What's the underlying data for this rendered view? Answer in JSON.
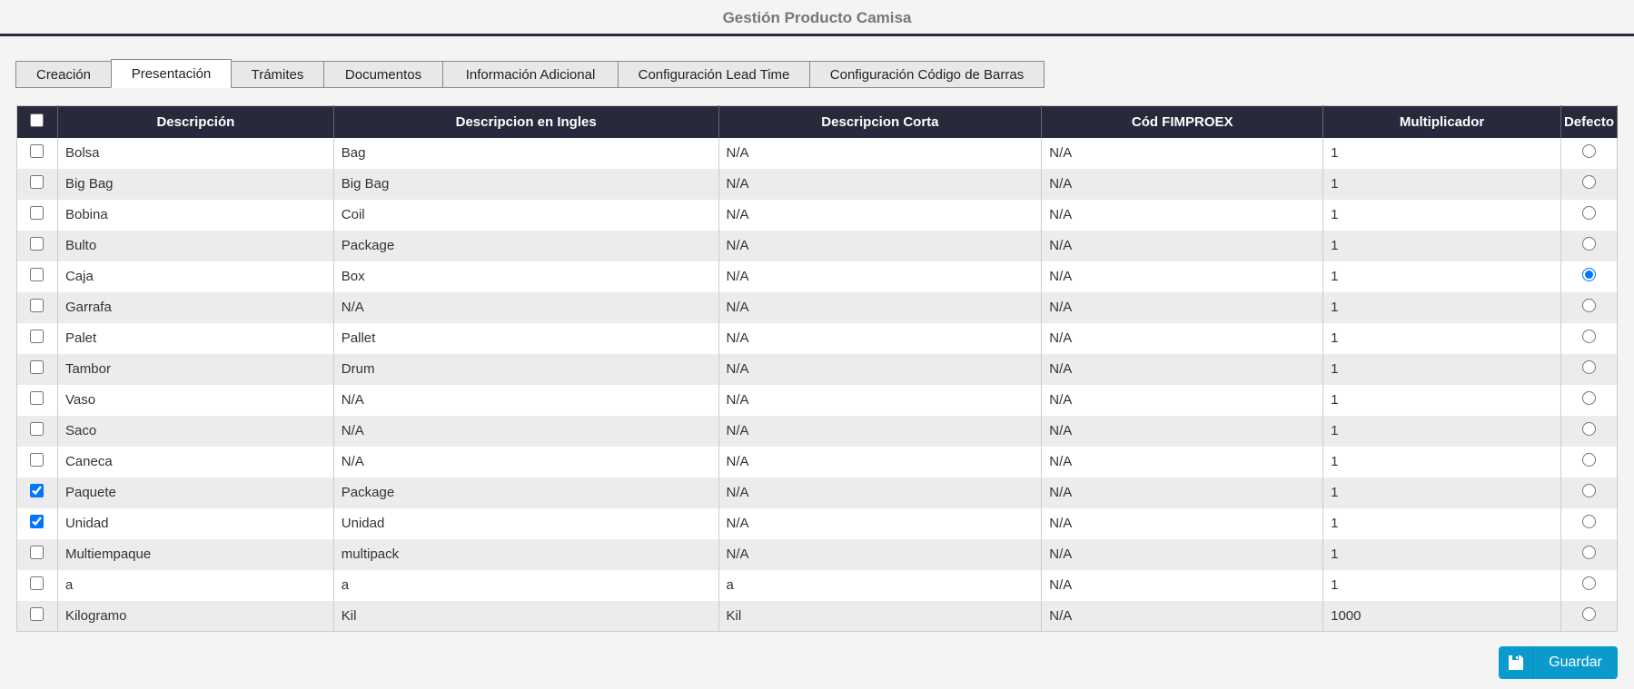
{
  "title": "Gestión Producto Camisa",
  "tabs": [
    {
      "label": "Creación",
      "w": 106
    },
    {
      "label": "Presentación",
      "w": 133,
      "active": true
    },
    {
      "label": "Trámites",
      "w": 103
    },
    {
      "label": "Documentos",
      "w": 132
    },
    {
      "label": "Información Adicional",
      "w": 194
    },
    {
      "label": "Configuración Lead Time",
      "w": 212
    },
    {
      "label": "Configuración Código de Barras",
      "w": 259
    }
  ],
  "columns": [
    "Descripción",
    "Descripcion en Ingles",
    "Descripcion Corta",
    "Cód FIMPROEX",
    "Multiplicador",
    "Defecto"
  ],
  "rows": [
    {
      "checked": false,
      "desc": "Bolsa",
      "en": "Bag",
      "corta": "N/A",
      "cod": "N/A",
      "mult": "1",
      "def": false
    },
    {
      "checked": false,
      "desc": "Big Bag",
      "en": "Big Bag",
      "corta": "N/A",
      "cod": "N/A",
      "mult": "1",
      "def": false
    },
    {
      "checked": false,
      "desc": "Bobina",
      "en": "Coil",
      "corta": "N/A",
      "cod": "N/A",
      "mult": "1",
      "def": false
    },
    {
      "checked": false,
      "desc": "Bulto",
      "en": "Package",
      "corta": "N/A",
      "cod": "N/A",
      "mult": "1",
      "def": false
    },
    {
      "checked": false,
      "desc": "Caja",
      "en": "Box",
      "corta": "N/A",
      "cod": "N/A",
      "mult": "1",
      "def": true
    },
    {
      "checked": false,
      "desc": "Garrafa",
      "en": "N/A",
      "corta": "N/A",
      "cod": "N/A",
      "mult": "1",
      "def": false
    },
    {
      "checked": false,
      "desc": "Palet",
      "en": "Pallet",
      "corta": "N/A",
      "cod": "N/A",
      "mult": "1",
      "def": false
    },
    {
      "checked": false,
      "desc": "Tambor",
      "en": "Drum",
      "corta": "N/A",
      "cod": "N/A",
      "mult": "1",
      "def": false
    },
    {
      "checked": false,
      "desc": "Vaso",
      "en": "N/A",
      "corta": "N/A",
      "cod": "N/A",
      "mult": "1",
      "def": false
    },
    {
      "checked": false,
      "desc": "Saco",
      "en": "N/A",
      "corta": "N/A",
      "cod": "N/A",
      "mult": "1",
      "def": false
    },
    {
      "checked": false,
      "desc": "Caneca",
      "en": "N/A",
      "corta": "N/A",
      "cod": "N/A",
      "mult": "1",
      "def": false
    },
    {
      "checked": true,
      "desc": "Paquete",
      "en": "Package",
      "corta": "N/A",
      "cod": "N/A",
      "mult": "1",
      "def": false
    },
    {
      "checked": true,
      "desc": "Unidad",
      "en": "Unidad",
      "corta": "N/A",
      "cod": "N/A",
      "mult": "1",
      "def": false
    },
    {
      "checked": false,
      "desc": "Multiempaque",
      "en": "multipack",
      "corta": "N/A",
      "cod": "N/A",
      "mult": "1",
      "def": false
    },
    {
      "checked": false,
      "desc": "a",
      "en": "a",
      "corta": "a",
      "cod": "N/A",
      "mult": "1",
      "def": false
    },
    {
      "checked": false,
      "desc": "Kilogramo",
      "en": "Kil",
      "corta": "Kil",
      "cod": "N/A",
      "mult": "1000",
      "def": false
    }
  ],
  "save": {
    "label": "Guardar",
    "icon": "floppy-disk-icon",
    "color": "#0a9acd"
  }
}
